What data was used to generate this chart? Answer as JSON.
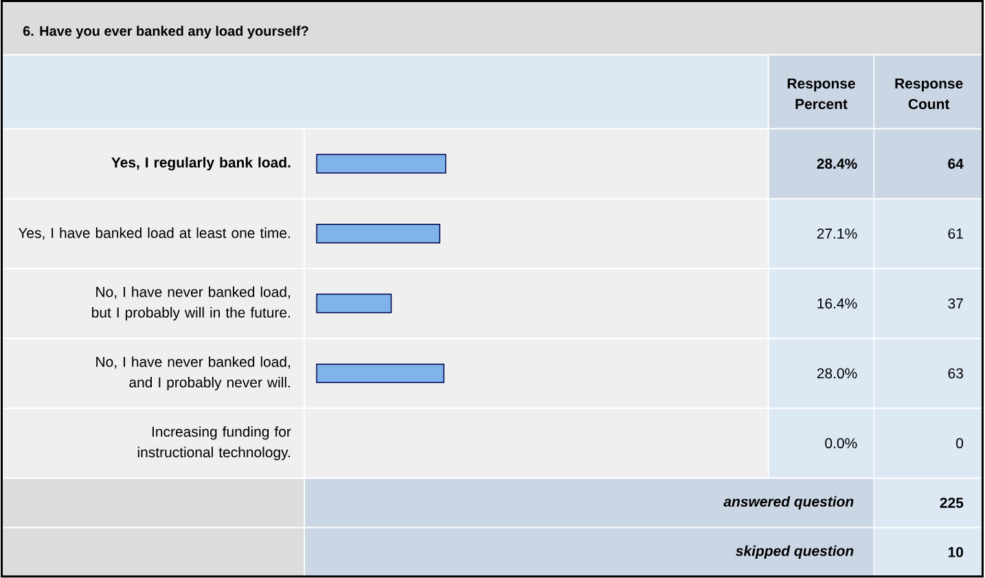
{
  "chart_data": {
    "type": "bar",
    "orientation": "horizontal",
    "title": "6. Have you ever banked any load yourself?",
    "categories": [
      "Yes, I regularly bank load.",
      "Yes, I have banked load at least one time.",
      "No, I have never banked load, but I probably will in the future.",
      "No, I have never banked load, and I probably never will.",
      "Increasing funding for instructional technology."
    ],
    "values": [
      28.4,
      27.1,
      16.4,
      28.0,
      0.0
    ],
    "value_labels": [
      "28.4%",
      "27.1%",
      "16.4%",
      "28.0%",
      "0.0%"
    ],
    "color": "#7fb3ea",
    "tick_labels": "y",
    "annotations": [
      "Response Percent",
      "Response Count",
      "64",
      "61",
      "37",
      "63",
      "0",
      "answered question",
      "225",
      "skipped question",
      "10"
    ]
  }
}
